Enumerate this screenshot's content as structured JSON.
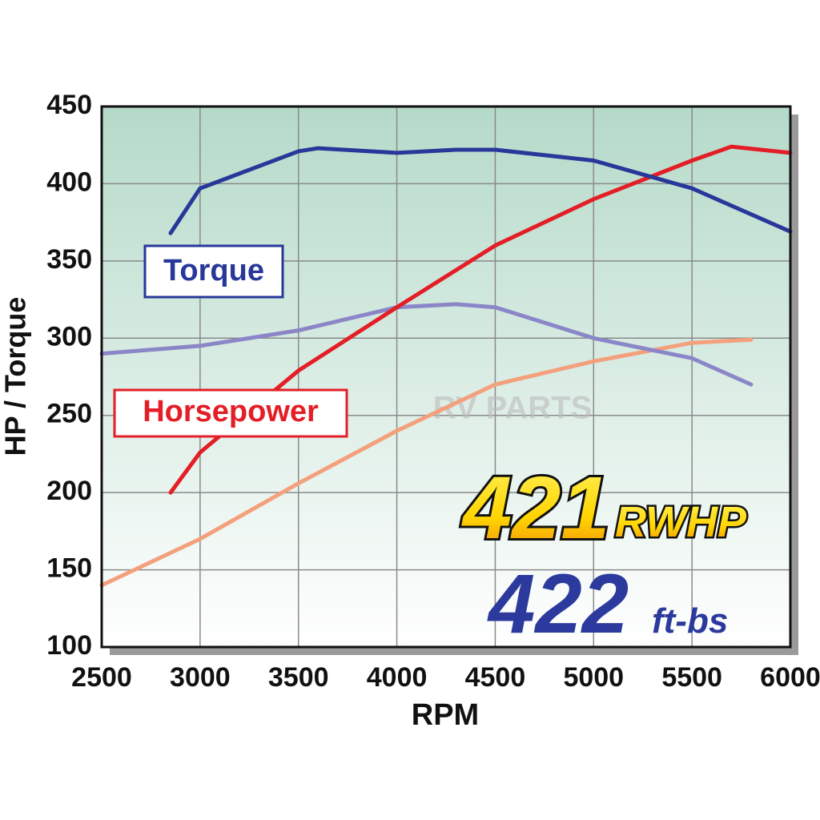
{
  "chart_data": {
    "type": "line",
    "x_label": "RPM",
    "y_label": "HP / Torque",
    "xlim": [
      2500,
      6000
    ],
    "xticks": [
      2500,
      3000,
      3500,
      4000,
      4500,
      5000,
      5500,
      6000
    ],
    "ylim": [
      100,
      450
    ],
    "yticks": [
      100,
      150,
      200,
      250,
      300,
      350,
      400,
      450
    ],
    "grid": true,
    "series": [
      {
        "name": "Torque",
        "color": "#27379a",
        "x": [
          2850,
          3000,
          3500,
          3600,
          4000,
          4300,
          4500,
          5000,
          5500,
          6000
        ],
        "values": [
          368,
          397,
          421,
          423,
          420,
          422,
          422,
          415,
          397,
          369
        ]
      },
      {
        "name": "Horsepower",
        "color": "#e31e26",
        "x": [
          2850,
          3000,
          3500,
          4000,
          4500,
          5000,
          5500,
          5700,
          6000
        ],
        "values": [
          200,
          226,
          279,
          320,
          360,
          390,
          415,
          424,
          420
        ]
      },
      {
        "color": "#8b86c8",
        "x": [
          2500,
          3000,
          3500,
          4000,
          4300,
          4500,
          5000,
          5500,
          5800
        ],
        "values": [
          290,
          295,
          305,
          320,
          322,
          320,
          300,
          287,
          270
        ]
      },
      {
        "color": "#f4a07c",
        "x": [
          2500,
          3000,
          3500,
          4000,
          4500,
          5000,
          5500,
          5800
        ],
        "values": [
          140,
          170,
          206,
          240,
          270,
          285,
          297,
          299
        ]
      }
    ],
    "annotations": {
      "hp_number": "421",
      "hp_unit": "RWHP",
      "tq_number": "422",
      "tq_unit": "ft-bs",
      "watermark": "RV PARTS"
    }
  }
}
